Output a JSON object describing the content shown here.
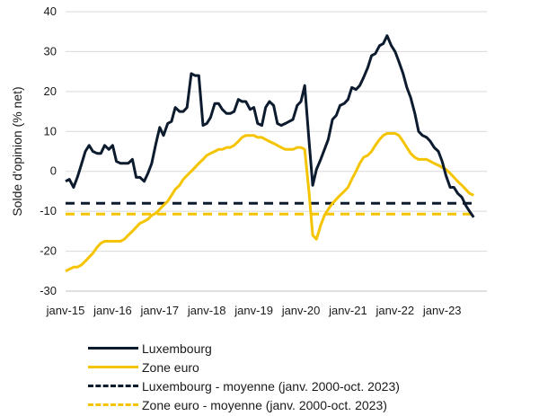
{
  "chart_data": {
    "type": "line",
    "title": "",
    "ylabel": "Solde d'opinion (% net)",
    "xlabel": "",
    "ylim": [
      -30,
      40
    ],
    "yticks": [
      -30,
      -20,
      -10,
      0,
      10,
      20,
      30,
      40
    ],
    "xlim": [
      2015.0,
      2023.95
    ],
    "xticks": [
      {
        "x": 2015,
        "label": "janv-15"
      },
      {
        "x": 2016,
        "label": "janv-16"
      },
      {
        "x": 2017,
        "label": "janv-17"
      },
      {
        "x": 2018,
        "label": "janv-18"
      },
      {
        "x": 2019,
        "label": "janv-19"
      },
      {
        "x": 2020,
        "label": "janv-20"
      },
      {
        "x": 2021,
        "label": "janv-21"
      },
      {
        "x": 2022,
        "label": "janv-22"
      },
      {
        "x": 2023,
        "label": "janv-23"
      }
    ],
    "grid": "horizontal",
    "legend_position": "bottom",
    "series": [
      {
        "name": "Luxembourg",
        "color": "#0d1b2f",
        "style": "solid",
        "points": [
          [
            2015.0,
            -2.5
          ],
          [
            2015.08,
            -2
          ],
          [
            2015.17,
            -4
          ],
          [
            2015.25,
            -1.5
          ],
          [
            2015.33,
            1.5
          ],
          [
            2015.42,
            5
          ],
          [
            2015.5,
            6.5
          ],
          [
            2015.58,
            5
          ],
          [
            2015.67,
            4.5
          ],
          [
            2015.75,
            4.5
          ],
          [
            2015.83,
            6.5
          ],
          [
            2015.92,
            5.5
          ],
          [
            2016.0,
            6.5
          ],
          [
            2016.08,
            2.5
          ],
          [
            2016.17,
            2
          ],
          [
            2016.25,
            2
          ],
          [
            2016.33,
            2
          ],
          [
            2016.42,
            3
          ],
          [
            2016.5,
            -1.5
          ],
          [
            2016.58,
            -1.5
          ],
          [
            2016.67,
            -2.5
          ],
          [
            2016.75,
            -0.5
          ],
          [
            2016.83,
            2
          ],
          [
            2016.92,
            7
          ],
          [
            2017.0,
            11
          ],
          [
            2017.08,
            9
          ],
          [
            2017.17,
            12
          ],
          [
            2017.25,
            12.5
          ],
          [
            2017.33,
            16
          ],
          [
            2017.42,
            15
          ],
          [
            2017.5,
            15
          ],
          [
            2017.58,
            16
          ],
          [
            2017.67,
            24.5
          ],
          [
            2017.75,
            24
          ],
          [
            2017.83,
            24
          ],
          [
            2017.92,
            11.5
          ],
          [
            2018.0,
            12
          ],
          [
            2018.08,
            13.5
          ],
          [
            2018.17,
            17
          ],
          [
            2018.25,
            17
          ],
          [
            2018.33,
            15.5
          ],
          [
            2018.42,
            14.5
          ],
          [
            2018.5,
            14.5
          ],
          [
            2018.58,
            15
          ],
          [
            2018.67,
            18
          ],
          [
            2018.75,
            17.5
          ],
          [
            2018.83,
            17.5
          ],
          [
            2018.92,
            15.5
          ],
          [
            2019.0,
            16
          ],
          [
            2019.08,
            12
          ],
          [
            2019.17,
            11.5
          ],
          [
            2019.25,
            16
          ],
          [
            2019.33,
            17.5
          ],
          [
            2019.42,
            16.5
          ],
          [
            2019.5,
            12
          ],
          [
            2019.58,
            11.5
          ],
          [
            2019.67,
            12
          ],
          [
            2019.75,
            12.5
          ],
          [
            2019.83,
            13
          ],
          [
            2019.92,
            16.5
          ],
          [
            2020.0,
            17.5
          ],
          [
            2020.08,
            21.5
          ],
          [
            2020.17,
            8
          ],
          [
            2020.25,
            -3.5
          ],
          [
            2020.33,
            0.5
          ],
          [
            2020.42,
            3
          ],
          [
            2020.5,
            5.5
          ],
          [
            2020.58,
            8
          ],
          [
            2020.67,
            13
          ],
          [
            2020.75,
            14
          ],
          [
            2020.83,
            16.5
          ],
          [
            2020.92,
            17
          ],
          [
            2021.0,
            18
          ],
          [
            2021.08,
            21
          ],
          [
            2021.17,
            20.5
          ],
          [
            2021.25,
            21.5
          ],
          [
            2021.33,
            23.5
          ],
          [
            2021.42,
            26
          ],
          [
            2021.5,
            29
          ],
          [
            2021.58,
            29.5
          ],
          [
            2021.67,
            31.5
          ],
          [
            2021.75,
            32
          ],
          [
            2021.83,
            34
          ],
          [
            2021.92,
            31.5
          ],
          [
            2022.0,
            30
          ],
          [
            2022.08,
            27.5
          ],
          [
            2022.17,
            24.5
          ],
          [
            2022.25,
            21
          ],
          [
            2022.33,
            18.5
          ],
          [
            2022.42,
            14.5
          ],
          [
            2022.5,
            10
          ],
          [
            2022.58,
            9
          ],
          [
            2022.67,
            8.5
          ],
          [
            2022.75,
            7.5
          ],
          [
            2022.83,
            6
          ],
          [
            2022.92,
            5
          ],
          [
            2023.0,
            2.5
          ],
          [
            2023.08,
            -1
          ],
          [
            2023.17,
            -4
          ],
          [
            2023.25,
            -4
          ],
          [
            2023.33,
            -5.5
          ],
          [
            2023.42,
            -6.5
          ],
          [
            2023.5,
            -8.5
          ],
          [
            2023.58,
            -10
          ],
          [
            2023.67,
            -11.5
          ]
        ]
      },
      {
        "name": "Zone euro",
        "color": "#f5c400",
        "style": "solid",
        "points": [
          [
            2015.0,
            -25
          ],
          [
            2015.08,
            -24.5
          ],
          [
            2015.17,
            -24
          ],
          [
            2015.25,
            -24
          ],
          [
            2015.33,
            -23.5
          ],
          [
            2015.42,
            -22.5
          ],
          [
            2015.5,
            -21.5
          ],
          [
            2015.58,
            -20.5
          ],
          [
            2015.67,
            -19
          ],
          [
            2015.75,
            -18
          ],
          [
            2015.83,
            -17.5
          ],
          [
            2015.92,
            -17.5
          ],
          [
            2016.0,
            -17.5
          ],
          [
            2016.08,
            -17.5
          ],
          [
            2016.17,
            -17.5
          ],
          [
            2016.25,
            -17
          ],
          [
            2016.33,
            -16
          ],
          [
            2016.42,
            -15
          ],
          [
            2016.5,
            -14
          ],
          [
            2016.58,
            -13
          ],
          [
            2016.67,
            -12.5
          ],
          [
            2016.75,
            -12
          ],
          [
            2016.83,
            -11
          ],
          [
            2016.92,
            -10.5
          ],
          [
            2017.0,
            -9.5
          ],
          [
            2017.08,
            -8.5
          ],
          [
            2017.17,
            -7.5
          ],
          [
            2017.25,
            -6
          ],
          [
            2017.33,
            -4.5
          ],
          [
            2017.42,
            -3.5
          ],
          [
            2017.5,
            -2
          ],
          [
            2017.58,
            -1
          ],
          [
            2017.67,
            0
          ],
          [
            2017.75,
            1
          ],
          [
            2017.83,
            2
          ],
          [
            2017.92,
            3
          ],
          [
            2018.0,
            4
          ],
          [
            2018.08,
            4.5
          ],
          [
            2018.17,
            5
          ],
          [
            2018.25,
            5.5
          ],
          [
            2018.33,
            5.5
          ],
          [
            2018.42,
            6
          ],
          [
            2018.5,
            6
          ],
          [
            2018.58,
            6.5
          ],
          [
            2018.67,
            7.5
          ],
          [
            2018.75,
            8.5
          ],
          [
            2018.83,
            9
          ],
          [
            2018.92,
            9
          ],
          [
            2019.0,
            9
          ],
          [
            2019.08,
            8.5
          ],
          [
            2019.17,
            8.5
          ],
          [
            2019.25,
            8
          ],
          [
            2019.33,
            7.5
          ],
          [
            2019.42,
            7
          ],
          [
            2019.5,
            6.5
          ],
          [
            2019.58,
            6
          ],
          [
            2019.67,
            5.5
          ],
          [
            2019.75,
            5.5
          ],
          [
            2019.83,
            5.5
          ],
          [
            2019.92,
            6
          ],
          [
            2020.0,
            6
          ],
          [
            2020.08,
            5.5
          ],
          [
            2020.17,
            -5
          ],
          [
            2020.25,
            -16
          ],
          [
            2020.33,
            -17
          ],
          [
            2020.42,
            -13.5
          ],
          [
            2020.5,
            -11
          ],
          [
            2020.58,
            -9.5
          ],
          [
            2020.67,
            -8
          ],
          [
            2020.75,
            -7
          ],
          [
            2020.83,
            -6
          ],
          [
            2020.92,
            -5
          ],
          [
            2021.0,
            -4
          ],
          [
            2021.08,
            -2
          ],
          [
            2021.17,
            0
          ],
          [
            2021.25,
            2
          ],
          [
            2021.33,
            3.5
          ],
          [
            2021.42,
            4
          ],
          [
            2021.5,
            5
          ],
          [
            2021.58,
            6.5
          ],
          [
            2021.67,
            8
          ],
          [
            2021.75,
            9
          ],
          [
            2021.83,
            9.5
          ],
          [
            2021.92,
            9.5
          ],
          [
            2022.0,
            9.5
          ],
          [
            2022.08,
            9
          ],
          [
            2022.17,
            7.5
          ],
          [
            2022.25,
            6
          ],
          [
            2022.33,
            4.5
          ],
          [
            2022.42,
            3.5
          ],
          [
            2022.5,
            3
          ],
          [
            2022.58,
            3
          ],
          [
            2022.67,
            3
          ],
          [
            2022.75,
            2.5
          ],
          [
            2022.83,
            2
          ],
          [
            2022.92,
            1.5
          ],
          [
            2023.0,
            1
          ],
          [
            2023.08,
            0.5
          ],
          [
            2023.17,
            -0.5
          ],
          [
            2023.25,
            -1.5
          ],
          [
            2023.33,
            -2.5
          ],
          [
            2023.42,
            -3.5
          ],
          [
            2023.5,
            -4.5
          ],
          [
            2023.58,
            -5.5
          ],
          [
            2023.67,
            -6
          ]
        ]
      },
      {
        "name": "Luxembourg - moyenne (janv. 2000-oct. 2023)",
        "color": "#0d1b2f",
        "style": "dashed",
        "points": [
          [
            2015.0,
            -8
          ],
          [
            2023.67,
            -8
          ]
        ]
      },
      {
        "name": "Zone euro - moyenne (janv. 2000-oct. 2023)",
        "color": "#f5c400",
        "style": "dashed",
        "points": [
          [
            2015.0,
            -10.7
          ],
          [
            2023.67,
            -10.7
          ]
        ]
      }
    ]
  }
}
